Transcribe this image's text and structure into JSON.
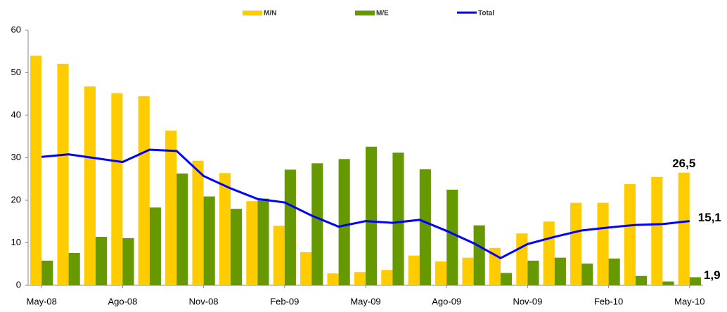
{
  "chart_data": {
    "type": "bar-line",
    "categories": [
      "May-08",
      null,
      null,
      "Ago-08",
      null,
      null,
      "Nov-08",
      null,
      null,
      "Feb-09",
      null,
      null,
      "May-09",
      null,
      null,
      "Ago-09",
      null,
      null,
      "Nov-09",
      null,
      null,
      "Feb-10",
      null,
      null,
      "May-10"
    ],
    "series": [
      {
        "name": "M/N",
        "color": "#ffcc00",
        "kind": "bar",
        "values": [
          54.0,
          52.1,
          46.8,
          45.2,
          44.5,
          36.4,
          29.3,
          26.4,
          19.8,
          14.0,
          7.8,
          2.8,
          3.1,
          3.6,
          7.0,
          5.6,
          6.5,
          8.8,
          12.2,
          15.0,
          19.4,
          19.4,
          23.8,
          25.5,
          26.5
        ],
        "value_labels": [
          null,
          null,
          null,
          null,
          null,
          null,
          null,
          null,
          null,
          null,
          null,
          null,
          null,
          null,
          null,
          null,
          null,
          null,
          null,
          null,
          null,
          null,
          null,
          null,
          "26,5"
        ]
      },
      {
        "name": "M/E",
        "color": "#669900",
        "kind": "bar",
        "values": [
          5.8,
          7.6,
          11.4,
          11.1,
          18.3,
          26.3,
          20.9,
          18.0,
          20.4,
          27.2,
          28.7,
          29.7,
          32.6,
          31.2,
          27.3,
          22.5,
          14.1,
          2.9,
          5.8,
          6.5,
          5.1,
          6.3,
          2.2,
          0.9,
          1.9
        ],
        "value_labels": [
          null,
          null,
          null,
          null,
          null,
          null,
          null,
          null,
          null,
          null,
          null,
          null,
          null,
          null,
          null,
          null,
          null,
          null,
          null,
          null,
          null,
          null,
          null,
          null,
          "1,9"
        ]
      },
      {
        "name": "Total",
        "color": "#0000ff",
        "kind": "line",
        "values": [
          30.2,
          30.8,
          29.9,
          29.0,
          31.9,
          31.6,
          25.7,
          22.8,
          20.3,
          19.5,
          16.4,
          13.8,
          15.1,
          14.7,
          15.4,
          12.8,
          9.9,
          6.4,
          9.7,
          11.4,
          12.9,
          13.6,
          14.2,
          14.4,
          15.1
        ],
        "value_labels": [
          null,
          null,
          null,
          null,
          null,
          null,
          null,
          null,
          null,
          null,
          null,
          null,
          null,
          null,
          null,
          null,
          null,
          null,
          null,
          null,
          null,
          null,
          null,
          null,
          "15,1"
        ]
      }
    ],
    "ylim": [
      0,
      60
    ],
    "yticks": [
      0,
      10,
      20,
      30,
      40,
      50,
      60
    ],
    "legend": "top"
  }
}
